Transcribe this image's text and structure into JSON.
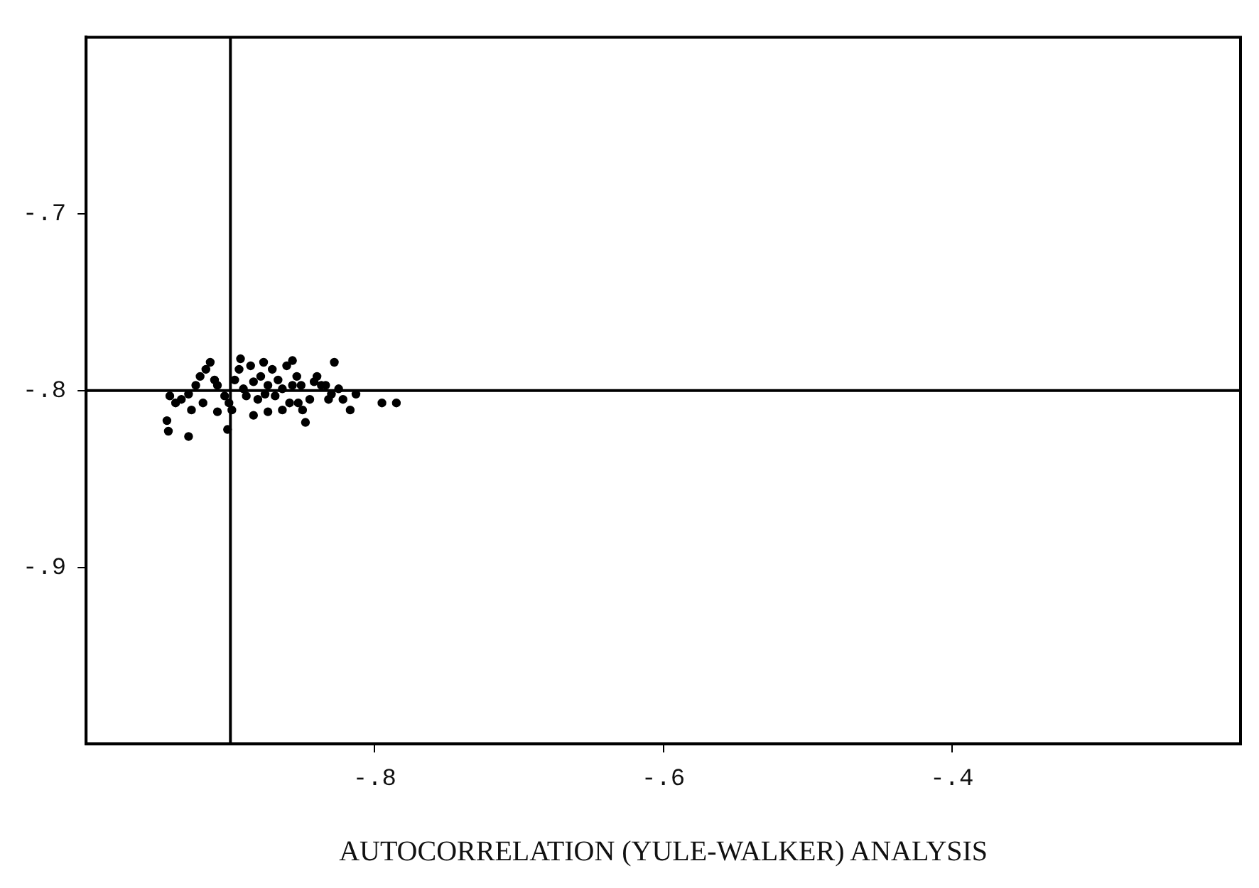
{
  "chart_data": {
    "type": "scatter",
    "xlabel": "AUTOCORRELATION (YULE-WALKER) ANALYSIS",
    "xlim": [
      -1.0,
      -0.2
    ],
    "ylim": [
      -1.0,
      -0.6
    ],
    "xticks": [
      {
        "value": -0.8,
        "label": "-.8"
      },
      {
        "value": -0.6,
        "label": "-.6"
      },
      {
        "value": -0.4,
        "label": "-.4"
      }
    ],
    "yticks": [
      {
        "value": -0.9,
        "label": "-.9"
      },
      {
        "value": -0.8,
        "label": "-.8"
      },
      {
        "value": -0.7,
        "label": "-.7"
      }
    ],
    "grid": false,
    "legend": false,
    "marker": "circle",
    "ref_lines": [
      {
        "axis": "x",
        "value": -0.9,
        "color": "#000000"
      },
      {
        "axis": "y",
        "value": -0.8,
        "color": "#000000"
      }
    ],
    "series": [
      {
        "color": "#000000",
        "x": [
          -0.942,
          -0.944,
          -0.943,
          -0.929,
          -0.938,
          -0.934,
          -0.929,
          -0.924,
          -0.921,
          -0.917,
          -0.914,
          -0.911,
          -0.909,
          -0.904,
          -0.901,
          -0.899,
          -0.902,
          -0.897,
          -0.894,
          -0.891,
          -0.889,
          -0.886,
          -0.884,
          -0.881,
          -0.879,
          -0.876,
          -0.874,
          -0.871,
          -0.869,
          -0.867,
          -0.864,
          -0.861,
          -0.859,
          -0.857,
          -0.854,
          -0.851,
          -0.85,
          -0.848,
          -0.845,
          -0.842,
          -0.84,
          -0.837,
          -0.834,
          -0.832,
          -0.83,
          -0.828,
          -0.825,
          -0.822,
          -0.817,
          -0.813,
          -0.795,
          -0.785,
          -0.909,
          -0.919,
          -0.927,
          -0.884,
          -0.874,
          -0.864,
          -0.853,
          -0.893,
          -0.877,
          -0.857
        ],
        "values": [
          -0.803,
          -0.817,
          -0.823,
          -0.826,
          -0.807,
          -0.805,
          -0.802,
          -0.797,
          -0.792,
          -0.788,
          -0.784,
          -0.794,
          -0.797,
          -0.803,
          -0.807,
          -0.811,
          -0.822,
          -0.794,
          -0.788,
          -0.799,
          -0.803,
          -0.786,
          -0.795,
          -0.805,
          -0.792,
          -0.802,
          -0.797,
          -0.788,
          -0.803,
          -0.794,
          -0.799,
          -0.786,
          -0.807,
          -0.797,
          -0.792,
          -0.797,
          -0.811,
          -0.818,
          -0.805,
          -0.795,
          -0.792,
          -0.797,
          -0.797,
          -0.805,
          -0.802,
          -0.784,
          -0.799,
          -0.805,
          -0.811,
          -0.802,
          -0.807,
          -0.807,
          -0.812,
          -0.807,
          -0.811,
          -0.814,
          -0.812,
          -0.811,
          -0.807,
          -0.782,
          -0.784,
          -0.783
        ]
      }
    ]
  }
}
